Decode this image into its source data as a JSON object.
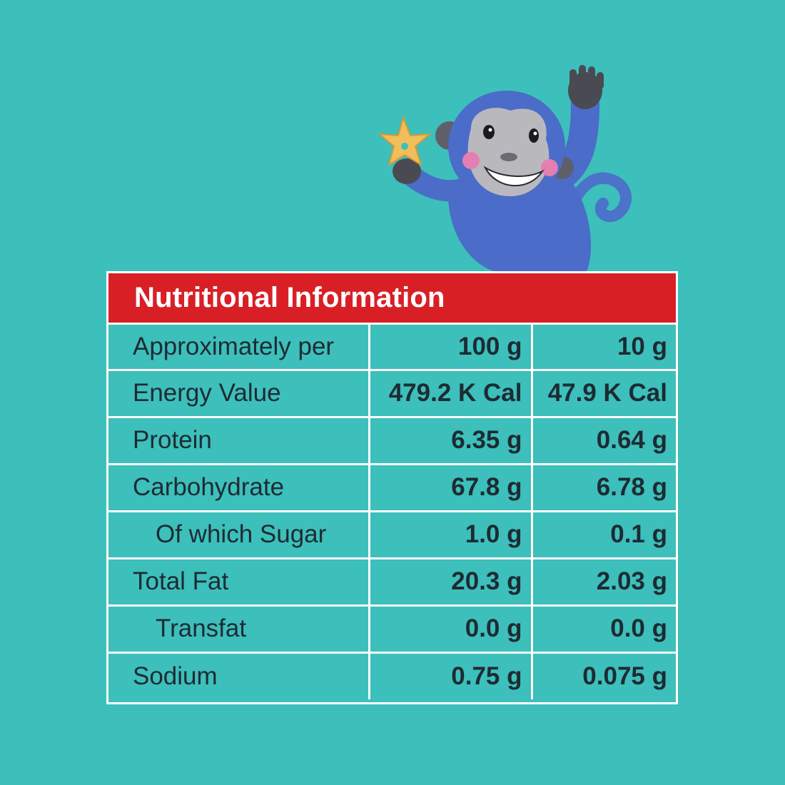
{
  "colors": {
    "background": "#3dbfbb",
    "header": "#d91f26",
    "text": "#1d2b33",
    "lines": "#ffffff"
  },
  "illustration": {
    "subject": "monkey-holding-star-snack-icon"
  },
  "panel": {
    "title": "Nutritional Information",
    "rows": [
      {
        "label": "Approximately per",
        "col1": "100 g",
        "col2": "10 g"
      },
      {
        "label": "Energy Value",
        "col1": "479.2 K Cal",
        "col2": "47.9 K Cal"
      },
      {
        "label": "Protein",
        "col1": "6.35 g",
        "col2": "0.64 g"
      },
      {
        "label": "Carbohydrate",
        "col1": "67.8 g",
        "col2": "6.78 g"
      },
      {
        "label": "Of which Sugar",
        "col1": "1.0 g",
        "col2": "0.1 g"
      },
      {
        "label": "Total Fat",
        "col1": "20.3 g",
        "col2": "2.03 g"
      },
      {
        "label": "Transfat",
        "col1": "0.0 g",
        "col2": "0.0 g"
      },
      {
        "label": "Sodium",
        "col1": "0.75 g",
        "col2": "0.075 g"
      }
    ]
  }
}
